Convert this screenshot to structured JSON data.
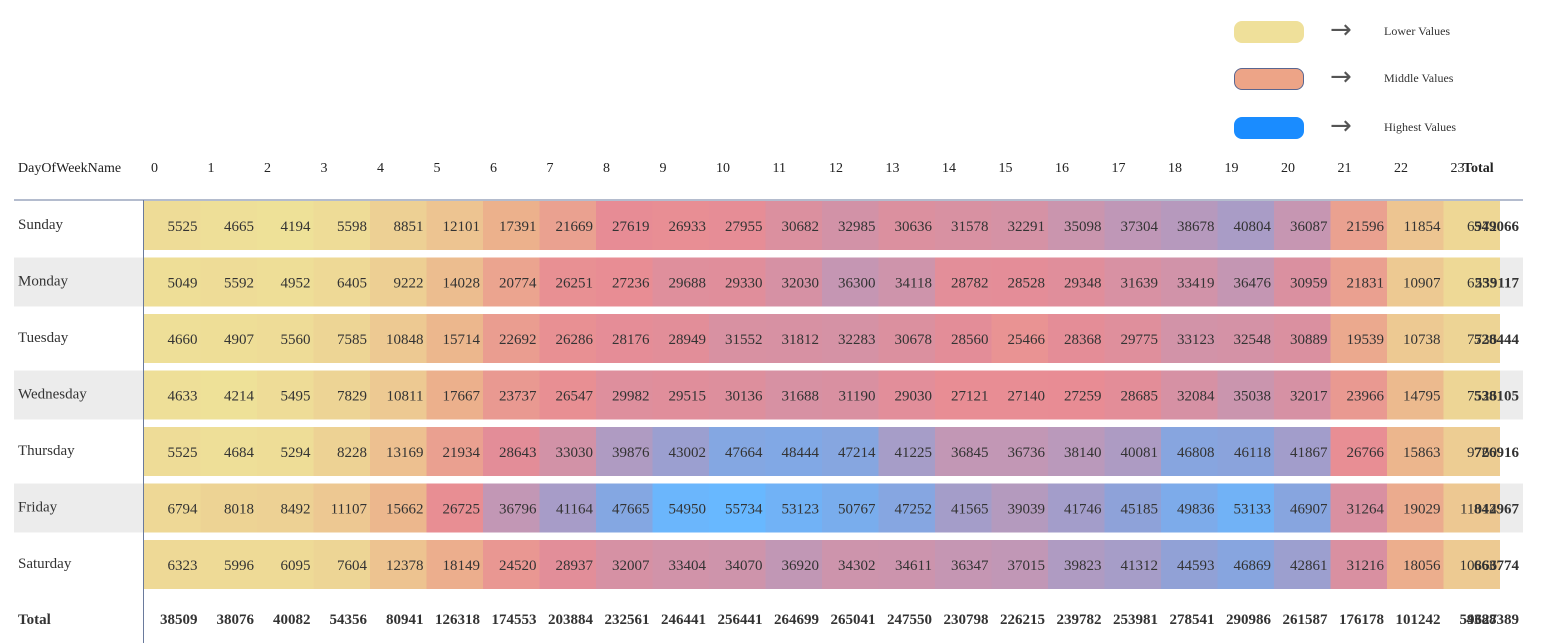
{
  "legend": [
    {
      "label": "Lower Values",
      "color": "#efe09a"
    },
    {
      "label": "Middle Values",
      "color": "#eda487"
    },
    {
      "label": "Highest Values",
      "color": "#1a8cff"
    }
  ],
  "chart_data": {
    "type": "heatmap",
    "row_header": "DayOfWeekName",
    "columns": [
      "0",
      "1",
      "2",
      "3",
      "4",
      "5",
      "6",
      "7",
      "8",
      "9",
      "10",
      "11",
      "12",
      "13",
      "14",
      "15",
      "16",
      "17",
      "18",
      "19",
      "20",
      "21",
      "22",
      "23"
    ],
    "total_label": "Total",
    "rows": [
      {
        "name": "Sunday",
        "values": [
          5525,
          4665,
          4194,
          5598,
          8851,
          12101,
          17391,
          21669,
          27619,
          26933,
          27955,
          30682,
          32985,
          30636,
          31578,
          32291,
          35098,
          37304,
          38678,
          40804,
          36087,
          21596,
          11854,
          6972
        ],
        "total": 549066
      },
      {
        "name": "Monday",
        "values": [
          5049,
          5592,
          4952,
          6405,
          9222,
          14028,
          20774,
          26251,
          27236,
          29688,
          29330,
          32030,
          36300,
          34118,
          28782,
          28528,
          29348,
          31639,
          33419,
          36476,
          30959,
          21831,
          10907,
          6253
        ],
        "total": 539117
      },
      {
        "name": "Tuesday",
        "values": [
          4660,
          4907,
          5560,
          7585,
          10848,
          15714,
          22692,
          26286,
          28176,
          28949,
          31552,
          31812,
          32283,
          30678,
          28560,
          25466,
          28368,
          29775,
          33123,
          32548,
          30889,
          19539,
          10738,
          7736
        ],
        "total": 528444
      },
      {
        "name": "Wednesday",
        "values": [
          4633,
          4214,
          5495,
          7829,
          10811,
          17667,
          23737,
          26547,
          29982,
          29515,
          30136,
          31688,
          31190,
          29030,
          27121,
          27140,
          27259,
          28685,
          32084,
          35038,
          32017,
          23966,
          14795,
          7526
        ],
        "total": 538105
      },
      {
        "name": "Thursday",
        "values": [
          5525,
          4684,
          5294,
          8228,
          13169,
          21934,
          28643,
          33030,
          39876,
          43002,
          47664,
          48444,
          47214,
          41225,
          36845,
          36736,
          38140,
          40081,
          46808,
          46118,
          41867,
          26766,
          15863,
          9760
        ],
        "total": 726916
      },
      {
        "name": "Friday",
        "values": [
          6794,
          8018,
          8492,
          11107,
          15662,
          26725,
          36796,
          41164,
          47665,
          54950,
          55734,
          53123,
          50767,
          47252,
          41565,
          39039,
          41746,
          45185,
          49836,
          53133,
          46907,
          31264,
          19029,
          11014
        ],
        "total": 842967
      },
      {
        "name": "Saturday",
        "values": [
          6323,
          5996,
          6095,
          7604,
          12378,
          18149,
          24520,
          28937,
          32007,
          33404,
          34070,
          36920,
          34302,
          34611,
          36347,
          37015,
          39823,
          41312,
          44593,
          46869,
          42861,
          31216,
          18056,
          10366
        ],
        "total": 663774
      }
    ],
    "column_totals": [
      38509,
      38076,
      40082,
      54356,
      80941,
      126318,
      174553,
      203884,
      232561,
      246441,
      256441,
      264699,
      265041,
      247550,
      230798,
      226215,
      239782,
      253981,
      278541,
      290986,
      261587,
      176178,
      101242,
      59627
    ],
    "grand_total": 4388389
  }
}
